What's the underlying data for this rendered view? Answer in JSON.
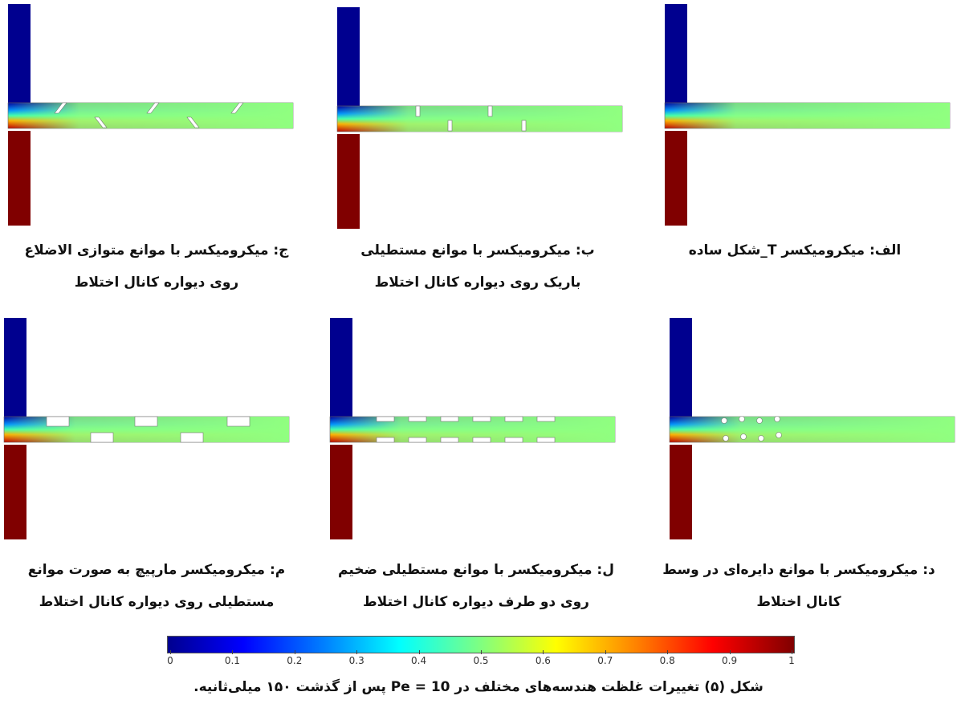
{
  "panels": [
    {
      "id": "alef",
      "caption": [
        "الف: میکرومیکسر T_شکل ساده"
      ],
      "obstacle": "none"
    },
    {
      "id": "be",
      "caption": [
        "ب: میکرومیکسر با موانع مستطیلی",
        "باریک روی دیواره کانال اختلاط"
      ],
      "obstacle": "thin-rect"
    },
    {
      "id": "jim",
      "caption": [
        "ج: میکرومیکسر با موانع متوازی الاضلاع",
        "روی دیواره کانال اختلاط"
      ],
      "obstacle": "parallelogram"
    },
    {
      "id": "dal",
      "caption": [
        "د: میکرومیکسر با موانع دایره‌ای در وسط",
        "کانال اختلاط"
      ],
      "obstacle": "circles"
    },
    {
      "id": "lam",
      "caption": [
        "ل: میکرومیکسر با موانع مستطیلی ضخیم",
        "روی دو طرف دیواره کانال اختلاط"
      ],
      "obstacle": "thick-rect-both"
    },
    {
      "id": "mim",
      "caption": [
        "م: میکرومیکسر مارپیچ به صورت موانع",
        "مستطیلی روی دیواره کانال اختلاط"
      ],
      "obstacle": "serpentine"
    }
  ],
  "colorbar": {
    "ticks": [
      "0",
      "0.1",
      "0.2",
      "0.3",
      "0.4",
      "0.5",
      "0.6",
      "0.7",
      "0.8",
      "0.9",
      "1"
    ],
    "colormap": "jet"
  },
  "figure_caption": "شکل (۵) تغییرات غلظت هندسه‌های مختلف در Pe = 10 پس از گذشت ۱۵۰ میلی‌ثانیه."
}
